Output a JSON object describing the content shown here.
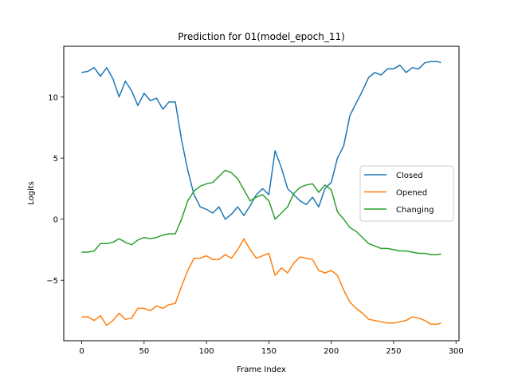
{
  "chart_data": {
    "type": "line",
    "title": "Prediction for 01(model_epoch_11)",
    "xlabel": "Frame Index",
    "ylabel": "Logits",
    "xlim": [
      -14.4,
      302.4
    ],
    "ylim": [
      -9.95,
      14.15
    ],
    "xticks": [
      0,
      50,
      100,
      150,
      200,
      250,
      300
    ],
    "yticks": [
      -5,
      0,
      5,
      10
    ],
    "ytick_labels": [
      "−5",
      "0",
      "5",
      "10"
    ],
    "grid": false,
    "legend_position": "center-right",
    "x": [
      0,
      5,
      10,
      15,
      20,
      25,
      30,
      35,
      40,
      45,
      50,
      55,
      60,
      65,
      70,
      75,
      80,
      85,
      90,
      95,
      100,
      105,
      110,
      115,
      120,
      125,
      130,
      135,
      140,
      145,
      150,
      155,
      160,
      165,
      170,
      175,
      180,
      185,
      190,
      195,
      200,
      205,
      210,
      215,
      220,
      225,
      230,
      235,
      240,
      245,
      250,
      255,
      260,
      265,
      270,
      275,
      280,
      285,
      288
    ],
    "series": [
      {
        "name": "Closed",
        "color": "#1f77b4",
        "values": [
          12.0,
          12.1,
          12.4,
          11.7,
          12.4,
          11.5,
          10.0,
          11.3,
          10.5,
          9.3,
          10.3,
          9.7,
          9.9,
          9.0,
          9.6,
          9.6,
          6.5,
          4.0,
          2.0,
          1.0,
          0.8,
          0.5,
          1.0,
          0.0,
          0.4,
          1.0,
          0.3,
          1.1,
          2.0,
          2.5,
          2.0,
          5.6,
          4.2,
          2.5,
          2.0,
          1.5,
          1.2,
          1.8,
          1.0,
          2.5,
          3.0,
          5.0,
          6.0,
          8.5,
          9.5,
          10.5,
          11.6,
          12.0,
          11.8,
          12.3,
          12.3,
          12.6,
          12.0,
          12.4,
          12.3,
          12.8,
          12.9,
          12.9,
          12.8
        ]
      },
      {
        "name": "Opened",
        "color": "#ff7f0e",
        "values": [
          -8.0,
          -8.0,
          -8.3,
          -7.9,
          -8.7,
          -8.3,
          -7.7,
          -8.2,
          -8.1,
          -7.3,
          -7.3,
          -7.5,
          -7.1,
          -7.3,
          -7.0,
          -6.9,
          -5.5,
          -4.2,
          -3.2,
          -3.2,
          -3.0,
          -3.3,
          -3.3,
          -2.9,
          -3.2,
          -2.5,
          -1.6,
          -2.5,
          -3.2,
          -3.0,
          -2.8,
          -4.6,
          -4.0,
          -4.4,
          -3.6,
          -3.1,
          -3.2,
          -3.3,
          -4.2,
          -4.4,
          -4.2,
          -4.6,
          -5.8,
          -6.8,
          -7.3,
          -7.7,
          -8.2,
          -8.3,
          -8.4,
          -8.5,
          -8.5,
          -8.4,
          -8.3,
          -8.0,
          -8.1,
          -8.3,
          -8.6,
          -8.6,
          -8.5
        ]
      },
      {
        "name": "Changing",
        "color": "#2ca02c",
        "values": [
          -2.7,
          -2.7,
          -2.6,
          -2.0,
          -2.0,
          -1.9,
          -1.6,
          -1.9,
          -2.1,
          -1.7,
          -1.5,
          -1.6,
          -1.5,
          -1.3,
          -1.2,
          -1.2,
          0.0,
          1.5,
          2.3,
          2.7,
          2.9,
          3.0,
          3.5,
          4.0,
          3.8,
          3.3,
          2.4,
          1.5,
          1.8,
          2.0,
          1.5,
          0.0,
          0.5,
          1.0,
          2.1,
          2.6,
          2.8,
          2.9,
          2.2,
          2.8,
          2.4,
          0.6,
          0.0,
          -0.7,
          -1.0,
          -1.5,
          -2.0,
          -2.2,
          -2.4,
          -2.4,
          -2.5,
          -2.6,
          -2.6,
          -2.7,
          -2.8,
          -2.8,
          -2.9,
          -2.9,
          -2.85
        ]
      }
    ]
  }
}
